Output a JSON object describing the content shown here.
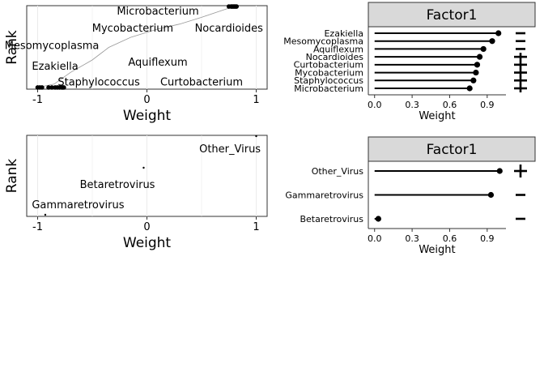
{
  "chart_data": [
    {
      "type": "scatter",
      "xlabel": "Weight",
      "ylabel": "Rank",
      "xlim": [
        -1.1,
        1.1
      ],
      "xticks": [
        -1,
        0,
        1
      ],
      "grid": true,
      "points_x": [
        -1.0,
        -0.98,
        -0.96,
        -0.9,
        -0.87,
        -0.84,
        -0.82,
        -0.8,
        -0.78,
        -0.77,
        -0.76,
        0.75,
        0.77,
        0.78,
        0.79,
        0.8,
        0.81,
        0.82
      ],
      "curve": [
        [
          -1.0,
          0.02
        ],
        [
          -0.85,
          0.06
        ],
        [
          -0.7,
          0.2
        ],
        [
          -0.5,
          0.35
        ],
        [
          -0.35,
          0.5
        ],
        [
          -0.15,
          0.62
        ],
        [
          0.1,
          0.72
        ],
        [
          0.3,
          0.78
        ],
        [
          0.5,
          0.86
        ],
        [
          0.7,
          0.95
        ],
        [
          0.82,
          1.0
        ]
      ],
      "labels": [
        {
          "text": "Microbacterium",
          "x": 0.1,
          "rank": 0.94
        },
        {
          "text": "Mycobacterium",
          "x": -0.13,
          "rank": 0.74
        },
        {
          "text": "Nocardioides",
          "x": 0.75,
          "rank": 0.74
        },
        {
          "text": "Mesomycoplasma",
          "x": -0.87,
          "rank": 0.53
        },
        {
          "text": "Aquiflexum",
          "x": 0.1,
          "rank": 0.33
        },
        {
          "text": "Ezakiella",
          "x": -0.84,
          "rank": 0.28
        },
        {
          "text": "Staphylococcus",
          "x": -0.44,
          "rank": 0.09
        },
        {
          "text": "Curtobacterium",
          "x": 0.5,
          "rank": 0.09
        }
      ]
    },
    {
      "type": "lollipop",
      "title": "Factor1",
      "xlabel": "Weight",
      "xlim": [
        -0.05,
        1.05
      ],
      "xticks": [
        0.0,
        0.3,
        0.6,
        0.9
      ],
      "categories": [
        "Ezakiella",
        "Mesomycoplasma",
        "Aquiflexum",
        "Nocardioides",
        "Curtobacterium",
        "Mycobacterium",
        "Staphylococcus",
        "Microbacterium"
      ],
      "values": [
        0.99,
        0.94,
        0.87,
        0.84,
        0.82,
        0.81,
        0.79,
        0.76
      ],
      "signs": [
        "-",
        "-",
        "-",
        "+",
        "+",
        "+",
        "+",
        "+"
      ]
    },
    {
      "type": "scatter",
      "xlabel": "Weight",
      "ylabel": "Rank",
      "xlim": [
        -1.1,
        1.1
      ],
      "xticks": [
        -1,
        0,
        1
      ],
      "grid": true,
      "points": [
        {
          "x": -0.93,
          "rank": 0.02
        },
        {
          "x": -0.03,
          "rank": 0.6
        },
        {
          "x": 1.0,
          "rank": 0.99
        }
      ],
      "labels": [
        {
          "text": "Other_Virus",
          "x": 0.76,
          "rank": 0.84
        },
        {
          "text": "Betaretrovirus",
          "x": -0.27,
          "rank": 0.4
        },
        {
          "text": "Gammaretrovirus",
          "x": -0.63,
          "rank": 0.15
        }
      ]
    },
    {
      "type": "lollipop",
      "title": "Factor1",
      "xlabel": "Weight",
      "xlim": [
        -0.05,
        1.05
      ],
      "xticks": [
        0.0,
        0.3,
        0.6,
        0.9
      ],
      "categories": [
        "Other_Virus",
        "Gammaretrovirus",
        "Betaretrovirus"
      ],
      "values": [
        1.0,
        0.93,
        0.03
      ],
      "signs": [
        "+",
        "-",
        "-"
      ]
    }
  ]
}
